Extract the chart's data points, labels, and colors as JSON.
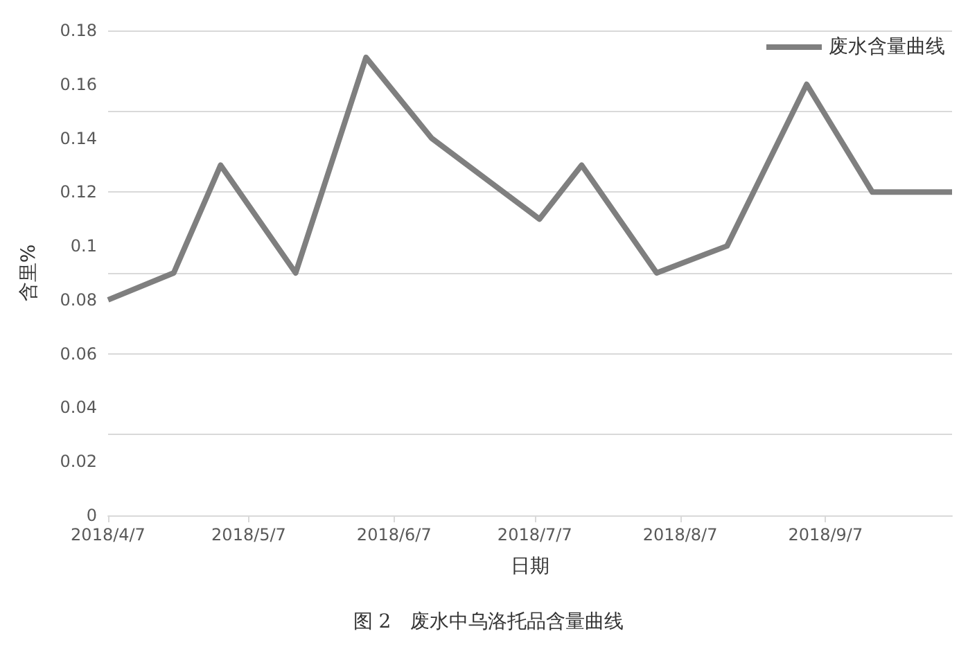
{
  "chart_data": {
    "type": "line",
    "title": "图 2　废水中乌洛托品含量曲线",
    "xlabel": "日期",
    "ylabel": "含里%",
    "x": [
      "2018-04-07",
      "2018-04-21",
      "2018-05-01",
      "2018-05-17",
      "2018-06-01",
      "2018-06-15",
      "2018-07-08",
      "2018-07-17",
      "2018-08-02",
      "2018-08-17",
      "2018-09-03",
      "2018-09-17",
      "2018-10-04"
    ],
    "series": [
      {
        "name": "废水含量曲线",
        "color": "#7f7f7f",
        "values": [
          0.08,
          0.09,
          0.13,
          0.09,
          0.17,
          0.14,
          0.11,
          0.13,
          0.09,
          0.1,
          0.16,
          0.12,
          0.12
        ]
      }
    ],
    "xlim": [
      "2018-04-07",
      "2018-10-04"
    ],
    "xticks": [
      {
        "value": "2018-04-07",
        "label": "2018/4/7"
      },
      {
        "value": "2018-05-07",
        "label": "2018/5/7"
      },
      {
        "value": "2018-06-07",
        "label": "2018/6/7"
      },
      {
        "value": "2018-07-07",
        "label": "2018/7/7"
      },
      {
        "value": "2018-08-07",
        "label": "2018/8/7"
      },
      {
        "value": "2018-09-07",
        "label": "2018/9/7"
      }
    ],
    "ylim": [
      0,
      0.18
    ],
    "yticks": [
      0,
      0.02,
      0.04,
      0.06,
      0.08,
      0.1,
      0.12,
      0.14,
      0.16,
      0.18
    ],
    "grid": "y",
    "legend": "top right",
    "marker": "none",
    "line_style": "solid"
  }
}
